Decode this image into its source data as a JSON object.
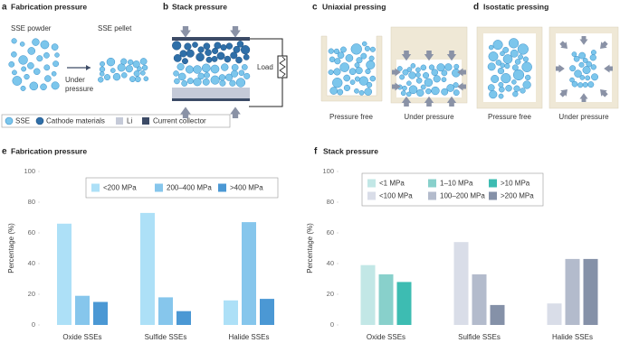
{
  "panels": [
    {
      "label": "a",
      "title": "Fabrication pressure",
      "before": "SSE powder",
      "after": "SSE pellet",
      "arrow_label": [
        "Under",
        "pressure"
      ]
    },
    {
      "label": "b",
      "title": "Stack pressure",
      "load": "Load"
    },
    {
      "label": "c",
      "title": "Uniaxial pressing",
      "captions": [
        "Pressure free",
        "Under pressure"
      ]
    },
    {
      "label": "d",
      "title": "Isostatic pressing",
      "captions": [
        "Pressure free",
        "Under pressure"
      ]
    }
  ],
  "legend": [
    "SSE",
    "Cathode materials",
    "Li",
    "Current collector"
  ],
  "chart_data": [
    {
      "type": "bar",
      "panel_label": "e",
      "title": "Fabrication pressure",
      "ylabel": "Percentage (%)",
      "categories": [
        "Oxide SSEs",
        "Sulfide SSEs",
        "Halide SSEs"
      ],
      "series": [
        {
          "name": "<200 MPa",
          "color": "#ade0f7",
          "values": [
            66,
            73,
            16
          ]
        },
        {
          "name": "200–400 MPa",
          "color": "#86c6ec",
          "values": [
            19,
            18,
            67
          ]
        },
        {
          "name": ">400 MPa",
          "color": "#4b98d4",
          "values": [
            15,
            9,
            17
          ]
        }
      ],
      "ylim": [
        0,
        100
      ],
      "yticks": [
        0,
        20,
        40,
        60,
        80,
        100
      ],
      "grid": false
    },
    {
      "type": "bar",
      "panel_label": "f",
      "title": "Stack pressure",
      "ylabel": "Percentage (%)",
      "categories": [
        "Oxide SSEs",
        "Sulfide SSEs",
        "Halide SSEs"
      ],
      "series": [
        {
          "name": "<1 MPa",
          "color": "#c2e7e6",
          "values": [
            39,
            null,
            null
          ]
        },
        {
          "name": "1–10 MPa",
          "color": "#88d0cb",
          "values": [
            33,
            null,
            null
          ]
        },
        {
          "name": ">10 MPa",
          "color": "#3dbcb2",
          "values": [
            28,
            null,
            null
          ]
        },
        {
          "name": "<100 MPa",
          "color": "#d9dde8",
          "values": [
            null,
            54,
            14
          ]
        },
        {
          "name": "100–200 MPa",
          "color": "#b3bbcc",
          "values": [
            null,
            33,
            43
          ]
        },
        {
          "name": ">200 MPa",
          "color": "#8591a8",
          "values": [
            null,
            13,
            43
          ]
        }
      ],
      "ylim": [
        0,
        100
      ],
      "yticks": [
        0,
        20,
        40,
        60,
        80,
        100
      ],
      "grid": false
    }
  ]
}
